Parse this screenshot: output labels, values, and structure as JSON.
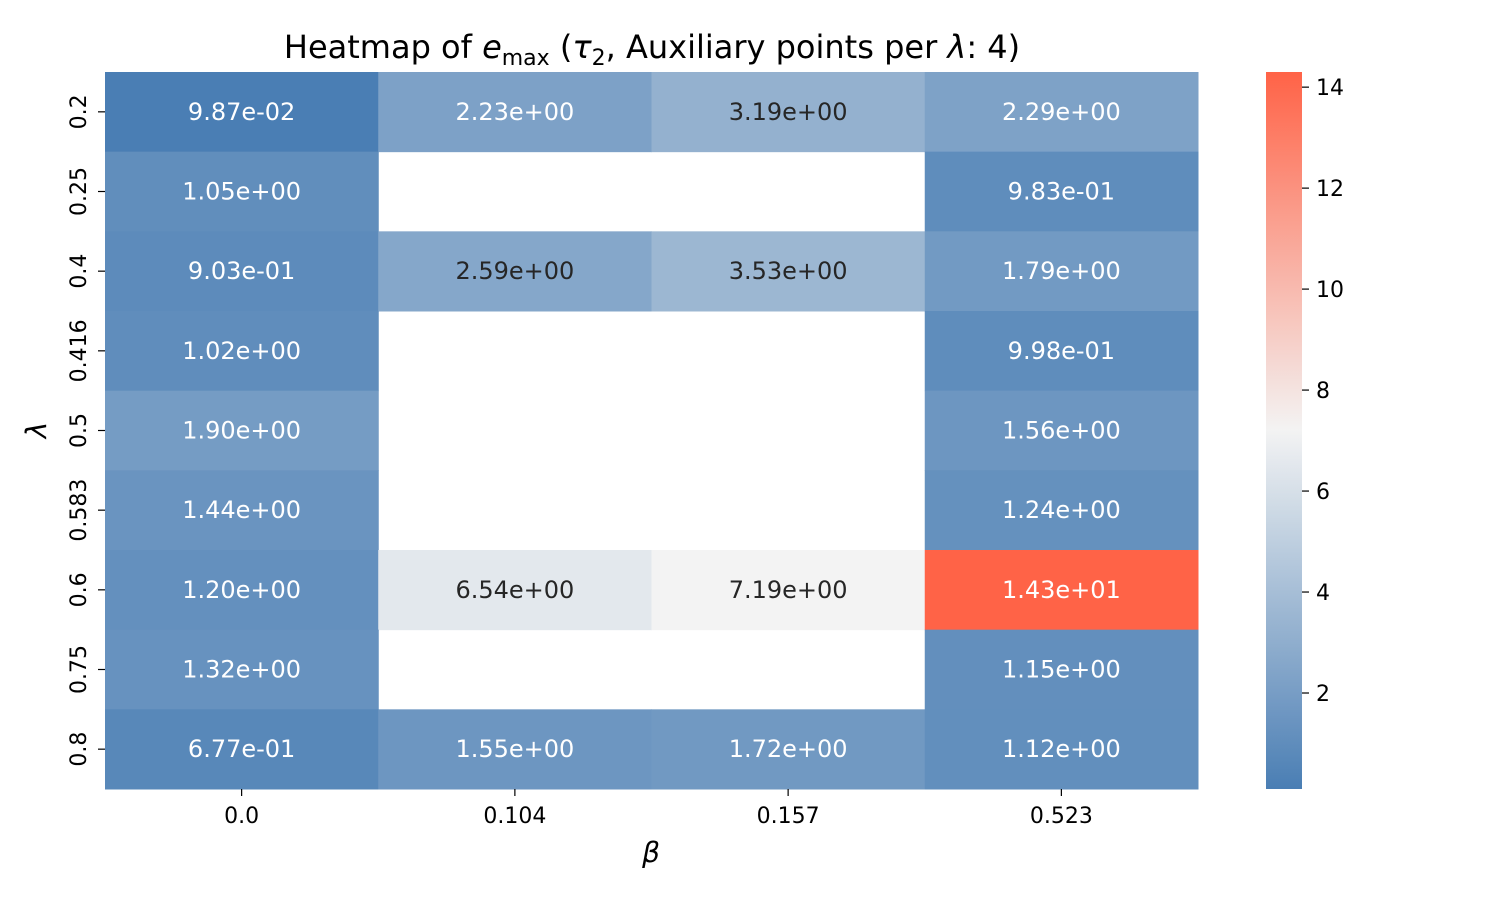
{
  "chart_data": {
    "type": "heatmap",
    "title": {
      "prefix": "Heatmap of ",
      "var": "e",
      "var_sub": "max",
      "mid": " (",
      "sym": "τ",
      "sym_sub": "2",
      "suffix": ", Auxiliary points per ",
      "lambda": "λ",
      "end": ": 4)"
    },
    "xlabel": "β",
    "ylabel": "λ",
    "x_categories": [
      "0.0",
      "0.104",
      "0.157",
      "0.523"
    ],
    "y_categories": [
      "0.2",
      "0.25",
      "0.4",
      "0.416",
      "0.5",
      "0.583",
      "0.6",
      "0.75",
      "0.8"
    ],
    "values": [
      [
        0.0987,
        2.23,
        3.19,
        2.29
      ],
      [
        1.05,
        null,
        null,
        0.983
      ],
      [
        0.903,
        2.59,
        3.53,
        1.79
      ],
      [
        1.02,
        null,
        null,
        0.998
      ],
      [
        1.9,
        null,
        null,
        1.56
      ],
      [
        1.44,
        null,
        null,
        1.24
      ],
      [
        1.2,
        6.54,
        7.19,
        14.3
      ],
      [
        1.32,
        null,
        null,
        1.15
      ],
      [
        0.677,
        1.55,
        1.72,
        1.12
      ]
    ],
    "labels": [
      [
        "9.87e-02",
        "2.23e+00",
        "3.19e+00",
        "2.29e+00"
      ],
      [
        "1.05e+00",
        "",
        "",
        "9.83e-01"
      ],
      [
        "9.03e-01",
        "2.59e+00",
        "3.53e+00",
        "1.79e+00"
      ],
      [
        "1.02e+00",
        "",
        "",
        "9.98e-01"
      ],
      [
        "1.90e+00",
        "",
        "",
        "1.56e+00"
      ],
      [
        "1.44e+00",
        "",
        "",
        "1.24e+00"
      ],
      [
        "1.20e+00",
        "6.54e+00",
        "7.19e+00",
        "1.43e+01"
      ],
      [
        "1.32e+00",
        "",
        "",
        "1.15e+00"
      ],
      [
        "6.77e-01",
        "1.55e+00",
        "1.72e+00",
        "1.12e+00"
      ]
    ],
    "colorbar": {
      "min": 0.0987,
      "max": 14.3,
      "center": 7.2,
      "ticks": [
        2,
        4,
        6,
        8,
        10,
        12,
        14
      ],
      "colors": {
        "low": "#4a7eb4",
        "mid": "#f3f3f3",
        "high": "#ff6347"
      }
    },
    "text_colors": {
      "light": "#ffffff",
      "dark": "#262626"
    },
    "grid": false
  }
}
